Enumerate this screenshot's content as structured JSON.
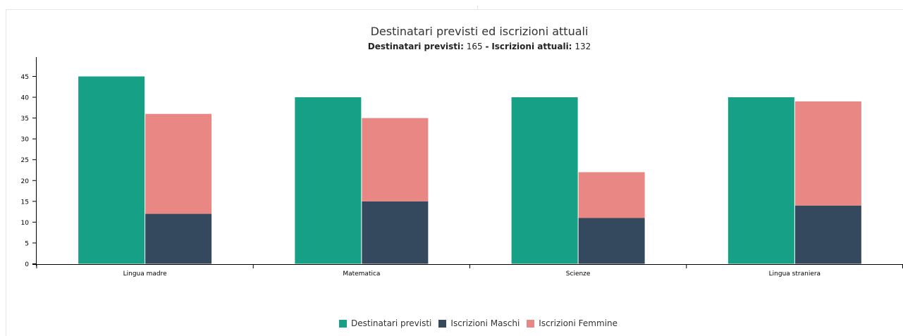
{
  "chart_data": {
    "type": "bar",
    "title": "Destinatari previsti ed iscrizioni attuali",
    "subtitle": {
      "label1": "Destinatari previsti:",
      "value1": "165",
      "separator": "-",
      "label2": "Iscrizioni attuali:",
      "value2": "132"
    },
    "categories": [
      "Lingua madre",
      "Matematica",
      "Scienze",
      "Lingua straniera"
    ],
    "series": [
      {
        "name": "Destinatari previsti",
        "values": [
          45,
          40,
          40,
          40
        ],
        "color": "#16a085",
        "stack": "a"
      },
      {
        "name": "Iscrizioni Maschi",
        "values": [
          12,
          15,
          11,
          14
        ],
        "color": "#34495e",
        "stack": "b"
      },
      {
        "name": "Iscrizioni Femmine",
        "values": [
          24,
          20,
          11,
          25
        ],
        "color": "#e88784",
        "stack": "b"
      }
    ],
    "yticks": [
      "0",
      "5",
      "10",
      "15",
      "20",
      "25",
      "30",
      "35",
      "40",
      "45"
    ],
    "ylim": [
      0,
      50
    ],
    "grid": false,
    "legend": "bottom-center"
  }
}
